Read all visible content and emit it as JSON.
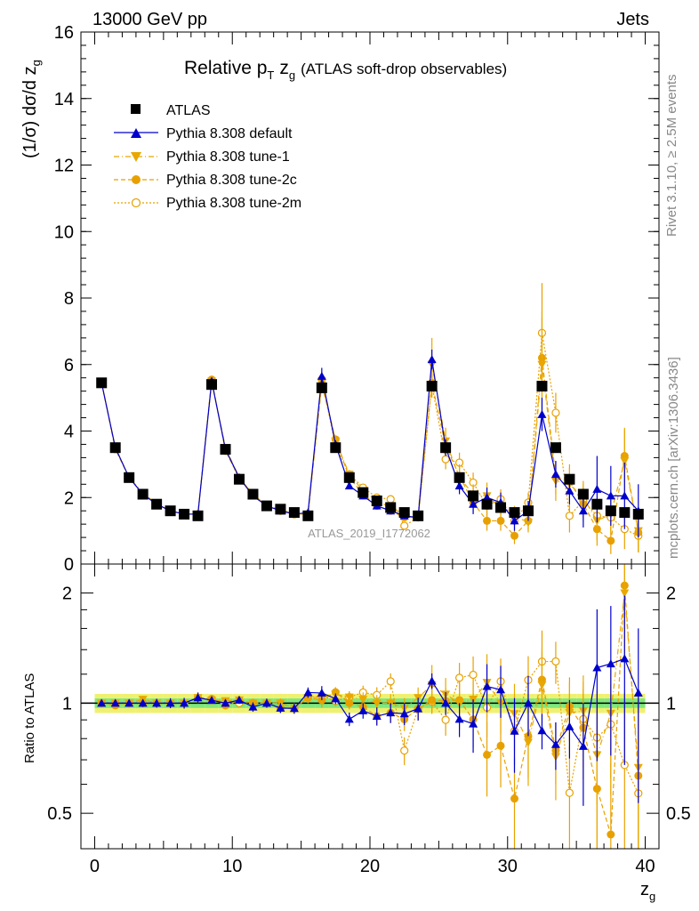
{
  "header": {
    "left": "13000 GeV pp",
    "right": "Jets",
    "side_top": "Rivet 3.1.10, ≥ 2.5M events",
    "side_bottom": "mcplots.cern.ch [arXiv:1306.3436]"
  },
  "chart_data": [
    {
      "type": "line",
      "panel": "main",
      "title_main": "Relative p",
      "title_sub": "T",
      "title_var": "z",
      "title_var_sub": "g",
      "title_rest": "(ATLAS soft-drop observables)",
      "ylabel": "(1/σ) dσ/d z",
      "ylabel_sub": "g",
      "watermark": "ATLAS_2019_I1772062",
      "xlim": [
        -1,
        41
      ],
      "ylim": [
        0,
        16
      ],
      "yticks": [
        0,
        2,
        4,
        6,
        8,
        10,
        12,
        14,
        16
      ],
      "ytick_labels": [
        "0",
        "2",
        "4",
        "6",
        "8",
        "10",
        "12",
        "14",
        "16"
      ],
      "legend_position": "top-left",
      "x": [
        0.5,
        1.5,
        2.5,
        3.5,
        4.5,
        5.5,
        6.5,
        7.5,
        8.5,
        9.5,
        10.5,
        11.5,
        12.5,
        13.5,
        14.5,
        15.5,
        16.5,
        17.5,
        18.5,
        19.5,
        20.5,
        21.5,
        22.5,
        23.5,
        24.5,
        25.5,
        26.5,
        27.5,
        28.5,
        29.5,
        30.5,
        31.5,
        32.5,
        33.5,
        34.5,
        35.5,
        36.5,
        37.5,
        38.5,
        39.5
      ],
      "series": [
        {
          "name": "ATLAS",
          "color": "#000000",
          "marker": "square",
          "values": [
            5.45,
            3.5,
            2.6,
            2.1,
            1.8,
            1.6,
            1.5,
            1.45,
            5.4,
            3.45,
            2.55,
            2.1,
            1.75,
            1.65,
            1.55,
            1.45,
            5.3,
            3.5,
            2.6,
            2.15,
            1.9,
            1.7,
            1.55,
            1.45,
            5.35,
            3.5,
            2.6,
            2.05,
            1.8,
            1.7,
            1.55,
            1.6,
            5.35,
            3.5,
            2.55,
            2.1,
            1.8,
            1.6,
            1.55,
            1.5
          ]
        },
        {
          "name": "Pythia 8.308 default",
          "color": "#0000cc",
          "marker": "triangle-up",
          "values": [
            5.45,
            3.5,
            2.6,
            2.1,
            1.8,
            1.6,
            1.5,
            1.5,
            5.5,
            3.45,
            2.6,
            2.05,
            1.75,
            1.6,
            1.5,
            1.55,
            5.65,
            3.6,
            2.35,
            2.05,
            1.75,
            1.6,
            1.45,
            1.4,
            6.15,
            3.5,
            2.35,
            1.8,
            2.0,
            1.85,
            1.3,
            1.6,
            4.5,
            2.7,
            2.2,
            1.6,
            2.25,
            2.05,
            2.05,
            1.6
          ],
          "errors": [
            0.05,
            0.05,
            0.05,
            0.05,
            0.05,
            0.05,
            0.05,
            0.05,
            0.1,
            0.08,
            0.06,
            0.06,
            0.05,
            0.05,
            0.05,
            0.05,
            0.25,
            0.12,
            0.1,
            0.1,
            0.1,
            0.1,
            0.1,
            0.1,
            0.3,
            0.25,
            0.25,
            0.3,
            0.3,
            0.3,
            0.3,
            0.3,
            0.5,
            0.4,
            0.4,
            0.5,
            1.0,
            0.9,
            1.0,
            0.8
          ]
        },
        {
          "name": "Pythia 8.308 tune-1",
          "color": "#e8a800",
          "marker": "triangle-down",
          "dash": "6,3,1,3",
          "values": [
            5.45,
            3.5,
            2.6,
            2.15,
            1.8,
            1.6,
            1.5,
            1.5,
            5.5,
            3.5,
            2.6,
            2.1,
            1.75,
            1.65,
            1.5,
            1.5,
            5.5,
            3.7,
            2.7,
            2.2,
            1.9,
            1.7,
            1.5,
            1.5,
            6.0,
            3.7,
            2.6,
            2.1,
            2.05,
            1.7,
            1.45,
            1.25,
            6.0,
            2.5,
            2.4,
            2.0,
            1.3,
            1.5,
            3.1,
            1.0
          ],
          "errors": [
            0.05,
            0.05,
            0.05,
            0.05,
            0.05,
            0.05,
            0.05,
            0.05,
            0.1,
            0.08,
            0.06,
            0.06,
            0.05,
            0.05,
            0.05,
            0.05,
            0.25,
            0.12,
            0.1,
            0.1,
            0.1,
            0.1,
            0.1,
            0.1,
            0.8,
            0.4,
            0.4,
            0.3,
            0.4,
            0.3,
            0.3,
            0.3,
            1.6,
            0.6,
            0.5,
            0.5,
            0.6,
            0.6,
            1.0,
            0.6
          ]
        },
        {
          "name": "Pythia 8.308 tune-2c",
          "color": "#e8a000",
          "marker": "circle",
          "dash": "5,3",
          "values": [
            5.45,
            3.45,
            2.6,
            2.1,
            1.8,
            1.6,
            1.5,
            1.5,
            5.55,
            3.4,
            2.6,
            2.1,
            1.75,
            1.6,
            1.5,
            1.5,
            5.4,
            3.75,
            2.6,
            2.1,
            1.75,
            1.6,
            1.4,
            1.4,
            5.45,
            3.55,
            2.65,
            1.85,
            1.3,
            1.3,
            0.85,
            1.3,
            6.2,
            2.6,
            2.5,
            1.8,
            1.05,
            0.7,
            3.25,
            0.95
          ],
          "errors": [
            0.05,
            0.05,
            0.05,
            0.05,
            0.05,
            0.05,
            0.05,
            0.05,
            0.1,
            0.08,
            0.06,
            0.06,
            0.05,
            0.05,
            0.05,
            0.05,
            0.25,
            0.12,
            0.1,
            0.1,
            0.1,
            0.1,
            0.1,
            0.1,
            0.4,
            0.3,
            0.3,
            0.3,
            0.3,
            0.3,
            0.25,
            0.3,
            1.2,
            0.5,
            0.5,
            0.5,
            0.5,
            0.4,
            0.8,
            0.6
          ]
        },
        {
          "name": "Pythia 8.308 tune-2m",
          "color": "#e8a000",
          "marker": "open-circle",
          "dash": "2,2",
          "values": [
            5.45,
            3.5,
            2.6,
            2.1,
            1.8,
            1.6,
            1.5,
            1.5,
            5.5,
            3.45,
            2.55,
            2.1,
            1.75,
            1.6,
            1.5,
            1.5,
            5.55,
            3.55,
            2.7,
            2.3,
            2.0,
            1.95,
            1.15,
            1.4,
            5.4,
            3.15,
            3.05,
            2.45,
            1.75,
            1.95,
            1.3,
            1.85,
            6.95,
            4.55,
            1.45,
            1.9,
            1.45,
            1.4,
            1.05,
            0.85
          ],
          "errors": [
            0.05,
            0.05,
            0.05,
            0.05,
            0.05,
            0.05,
            0.05,
            0.05,
            0.1,
            0.08,
            0.06,
            0.06,
            0.05,
            0.05,
            0.05,
            0.05,
            0.25,
            0.12,
            0.1,
            0.1,
            0.1,
            0.1,
            0.1,
            0.1,
            0.4,
            0.3,
            0.3,
            0.3,
            0.3,
            0.3,
            0.25,
            0.3,
            1.5,
            0.6,
            0.5,
            0.5,
            0.5,
            0.4,
            0.6,
            0.5
          ]
        }
      ]
    },
    {
      "type": "line",
      "panel": "ratio",
      "ylabel": "Ratio to ATLAS",
      "xlabel": "z",
      "xlabel_sub": "g",
      "xlim": [
        -1,
        41
      ],
      "ylim": [
        0.4,
        2.4
      ],
      "yticks": [
        0.5,
        1,
        2
      ],
      "ytick_labels": [
        "0.5",
        "1",
        "2"
      ],
      "xticks": [
        0,
        10,
        20,
        30,
        40
      ],
      "xtick_labels": [
        "0",
        "10",
        "20",
        "30",
        "40"
      ],
      "band_colors": {
        "inner": "#7fe87f",
        "outer": "#f0f070",
        "ref_line": "#000000"
      },
      "band_inner": 0.03,
      "band_outer": 0.06
    }
  ]
}
